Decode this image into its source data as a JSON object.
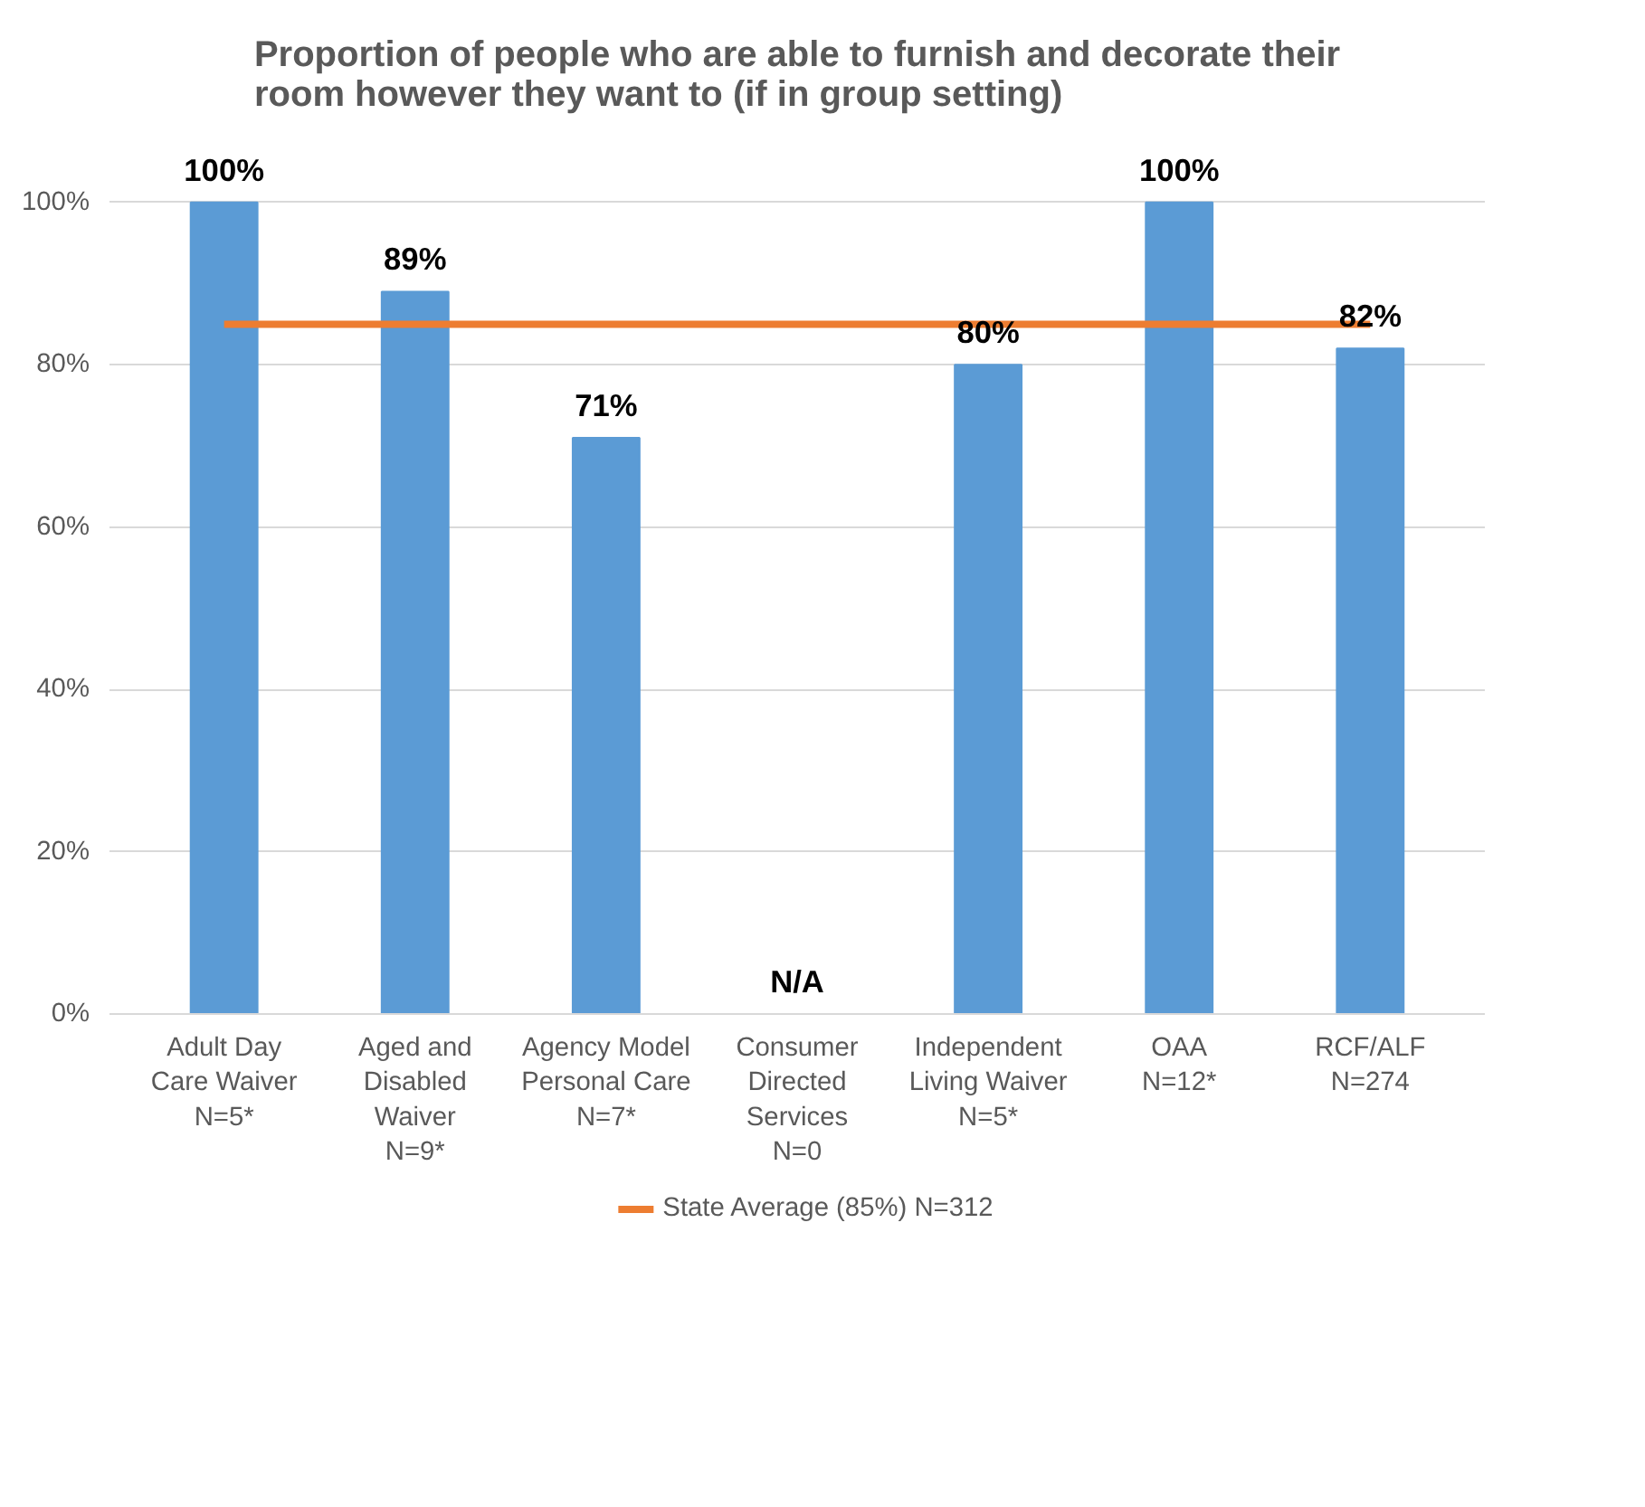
{
  "chart_data": {
    "type": "bar",
    "title": "Proportion of people who are able to furnish and decorate their room however they want to (if in group setting)",
    "categories": [
      "Adult Day\nCare Waiver\nN=5*",
      "Aged and\nDisabled\nWaiver\nN=9*",
      "Agency Model\nPersonal Care\nN=7*",
      "Consumer\nDirected\nServices\nN=0",
      "Independent\nLiving Waiver\nN=5*",
      "OAA\nN=12*",
      "RCF/ALF\nN=274"
    ],
    "series": [
      {
        "color": "#5b9bd5",
        "values": [
          100,
          89,
          71,
          null,
          80,
          100,
          82
        ],
        "value_labels": [
          "100%",
          "89%",
          "71%",
          "N/A",
          "80%",
          "100%",
          "82%"
        ]
      },
      {
        "type": "line",
        "name": "State Average (85%) N=312",
        "color": "#ed7d31",
        "values": [
          85,
          85,
          85,
          85,
          85,
          85,
          85
        ]
      }
    ],
    "ylim": [
      0,
      100
    ],
    "yticks": [
      {
        "value": 0,
        "label": "0%"
      },
      {
        "value": 20,
        "label": "20%"
      },
      {
        "value": 40,
        "label": "40%"
      },
      {
        "value": 60,
        "label": "60%"
      },
      {
        "value": 80,
        "label": "80%"
      },
      {
        "value": 100,
        "label": "100%"
      }
    ],
    "grid": "y",
    "legend": "bottom",
    "marker": "none",
    "line_style": "solid"
  }
}
